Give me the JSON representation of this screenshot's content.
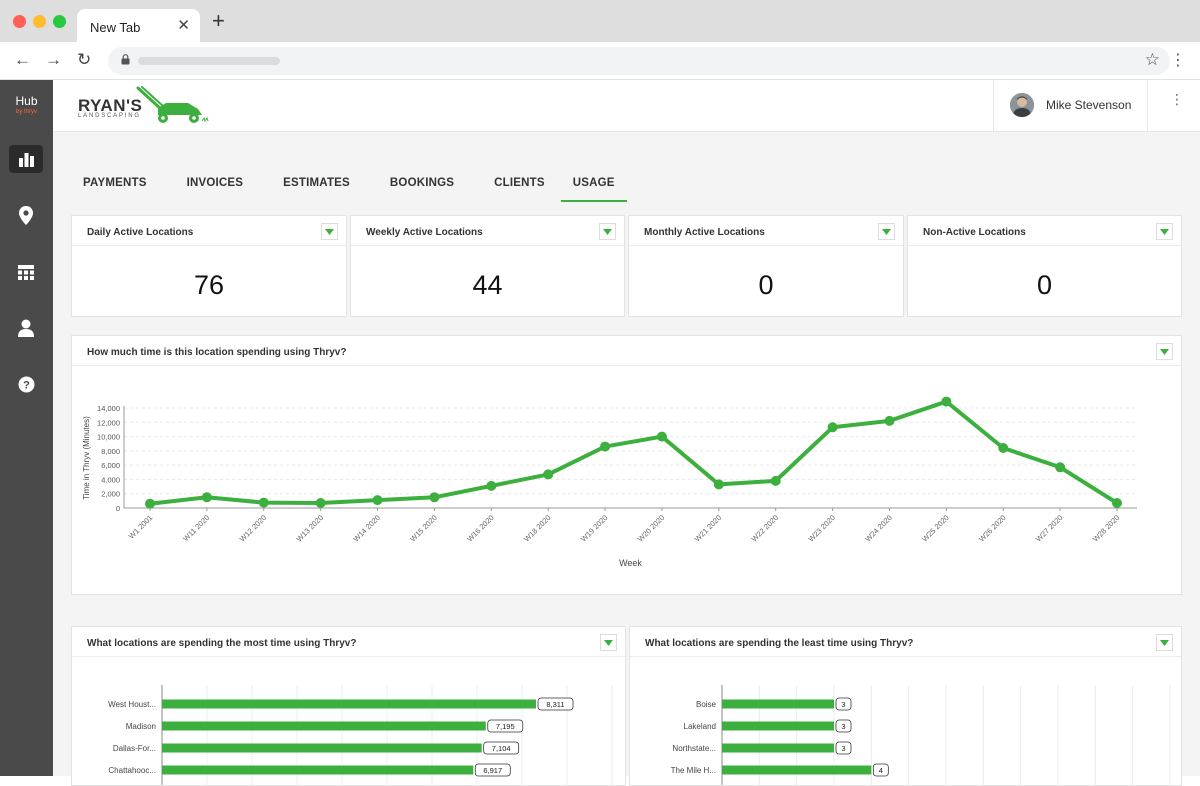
{
  "browser": {
    "tab_title": "New Tab",
    "close_glyph": "✕",
    "new_tab_glyph": "+",
    "back_glyph": "←",
    "forward_glyph": "→",
    "reload_glyph": "↻",
    "star_glyph": "☆",
    "menu_glyph": "⋮"
  },
  "sidebar": {
    "brand": "Hub",
    "brand_sub": "by thryv",
    "items": [
      {
        "icon": "bar-chart-icon",
        "active": true
      },
      {
        "icon": "location-pin-icon",
        "active": false
      },
      {
        "icon": "calendar-icon",
        "active": false
      },
      {
        "icon": "user-icon",
        "active": false
      },
      {
        "icon": "help-icon",
        "active": false
      }
    ]
  },
  "header": {
    "brand_title": "RYAN'S",
    "brand_subtitle": "LANDSCAPING",
    "user_name": "Mike Stevenson",
    "menu_glyph": "⋮"
  },
  "tabs": [
    "PAYMENTS",
    "INVOICES",
    "ESTIMATES",
    "BOOKINGS",
    "CLIENTS",
    "USAGE"
  ],
  "active_tab": "USAGE",
  "stats": [
    {
      "title": "Daily Active Locations",
      "value": "76"
    },
    {
      "title": "Weekly Active Locations",
      "value": "44"
    },
    {
      "title": "Monthly Active Locations",
      "value": "0"
    },
    {
      "title": "Non-Active Locations",
      "value": "0"
    }
  ],
  "colors": {
    "accent": "#3daf3e",
    "sidebar": "#4a4a4a",
    "sidebar_active": "#2b2b2b"
  },
  "line_chart": {
    "title": "How much time is this location spending using Thryv?"
  },
  "most_chart": {
    "title": "What locations are spending the most time using Thryv?"
  },
  "least_chart": {
    "title": "What locations are spending the least time using Thryv?"
  },
  "chart_data": [
    {
      "type": "line",
      "title": "How much time is this location spending using Thryv?",
      "xlabel": "Week",
      "ylabel": "Time in Thryv (Minutes)",
      "ylim": [
        0,
        14000
      ],
      "yticks": [
        "0",
        "2,000",
        "4,000",
        "6,000",
        "8,000",
        "10,000",
        "12,000",
        "14,000"
      ],
      "grid": true,
      "categories": [
        "W1 2001",
        "W11 2020",
        "W12 2020",
        "W13 2020",
        "W14 2020",
        "W15 2020",
        "W16 2020",
        "W18 2020",
        "W19 2020",
        "W20 2020",
        "W21 2020",
        "W22 2020",
        "W23 2020",
        "W24 2020",
        "W25 2020",
        "W26 2020",
        "W27 2020",
        "W28 2020"
      ],
      "values": [
        600,
        1500,
        750,
        700,
        1100,
        1500,
        3100,
        4700,
        8600,
        10000,
        3300,
        3800,
        11300,
        12200,
        14900,
        8400,
        5700,
        700
      ]
    },
    {
      "type": "bar",
      "orientation": "horizontal",
      "title": "What locations are spending the most time using Thryv?",
      "categories": [
        "West Houst...",
        "Madison",
        "Dallas-For...",
        "Chattahooc..."
      ],
      "values": [
        8311,
        7195,
        7104,
        6917
      ],
      "labels": [
        "8,311",
        "7,195",
        "7,104",
        "6,917"
      ]
    },
    {
      "type": "bar",
      "orientation": "horizontal",
      "title": "What locations are spending the least time using Thryv?",
      "categories": [
        "Boise",
        "Lakeland",
        "Northstate...",
        "The Mile H..."
      ],
      "values": [
        3,
        3,
        3,
        4
      ],
      "labels": [
        "3",
        "3",
        "3",
        "4"
      ]
    }
  ]
}
